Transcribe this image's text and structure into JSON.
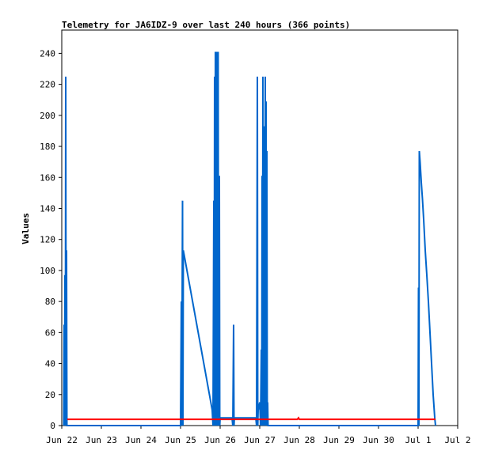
{
  "chart_data": {
    "type": "line",
    "title": "Telemetry for JA6IDZ-9 over last 240 hours (366 points)",
    "xlabel": "",
    "ylabel": "Values",
    "xlim": [
      "Jun 22",
      "Jul 2"
    ],
    "ylim": [
      0,
      255
    ],
    "yticks": [
      0,
      20,
      40,
      60,
      80,
      100,
      120,
      140,
      160,
      180,
      200,
      220,
      240
    ],
    "xticks": [
      "Jun 22",
      "Jun 23",
      "Jun 24",
      "Jun 25",
      "Jun 26",
      "Jun 27",
      "Jun 28",
      "Jun 29",
      "Jun 30",
      "Jul 1",
      "Jul 2"
    ],
    "grid": false,
    "legend": "none",
    "series": [
      {
        "color": "#0066cc",
        "points": [
          [
            0.05,
            0
          ],
          [
            0.06,
            65
          ],
          [
            0.07,
            0
          ],
          [
            0.08,
            97
          ],
          [
            0.09,
            0
          ],
          [
            0.1,
            225
          ],
          [
            0.11,
            0
          ],
          [
            0.12,
            113
          ],
          [
            0.13,
            0
          ],
          [
            0.14,
            0
          ],
          [
            3.0,
            0
          ],
          [
            3.02,
            80
          ],
          [
            3.03,
            0
          ],
          [
            3.05,
            145
          ],
          [
            3.06,
            0
          ],
          [
            3.07,
            113
          ],
          [
            3.8,
            10
          ],
          [
            3.82,
            0
          ],
          [
            3.84,
            145
          ],
          [
            3.85,
            0
          ],
          [
            3.86,
            225
          ],
          [
            3.87,
            0
          ],
          [
            3.88,
            241
          ],
          [
            3.9,
            0
          ],
          [
            3.92,
            241
          ],
          [
            3.93,
            0
          ],
          [
            3.95,
            241
          ],
          [
            3.96,
            0
          ],
          [
            3.98,
            161
          ],
          [
            3.99,
            0
          ],
          [
            4.0,
            5
          ],
          [
            4.3,
            5
          ],
          [
            4.32,
            0
          ],
          [
            4.34,
            65
          ],
          [
            4.35,
            0
          ],
          [
            4.36,
            5
          ],
          [
            4.9,
            5
          ],
          [
            4.92,
            0
          ],
          [
            4.94,
            225
          ],
          [
            4.95,
            0
          ],
          [
            4.96,
            10
          ],
          [
            5.0,
            15
          ],
          [
            5.02,
            0
          ],
          [
            5.04,
            49
          ],
          [
            5.05,
            0
          ],
          [
            5.06,
            161
          ],
          [
            5.07,
            0
          ],
          [
            5.08,
            225
          ],
          [
            5.09,
            0
          ],
          [
            5.1,
            193
          ],
          [
            5.11,
            0
          ],
          [
            5.12,
            161
          ],
          [
            5.13,
            0
          ],
          [
            5.14,
            225
          ],
          [
            5.15,
            0
          ],
          [
            5.16,
            209
          ],
          [
            5.17,
            0
          ],
          [
            5.18,
            177
          ],
          [
            5.19,
            0
          ],
          [
            5.2,
            15
          ],
          [
            5.21,
            0
          ],
          [
            9.0,
            0
          ],
          [
            9.01,
            89
          ],
          [
            9.02,
            0
          ],
          [
            9.03,
            177
          ],
          [
            9.05,
            170
          ],
          [
            9.08,
            157
          ],
          [
            9.11,
            146
          ],
          [
            9.14,
            133
          ],
          [
            9.18,
            113
          ],
          [
            9.22,
            97
          ],
          [
            9.26,
            80
          ],
          [
            9.3,
            60
          ],
          [
            9.34,
            40
          ],
          [
            9.38,
            20
          ],
          [
            9.42,
            5
          ],
          [
            9.44,
            0
          ]
        ]
      },
      {
        "color": "#ff0000",
        "points": [
          [
            0.14,
            4
          ],
          [
            5.95,
            4
          ],
          [
            5.98,
            5
          ],
          [
            6.0,
            4
          ],
          [
            9.44,
            4
          ]
        ]
      }
    ]
  }
}
